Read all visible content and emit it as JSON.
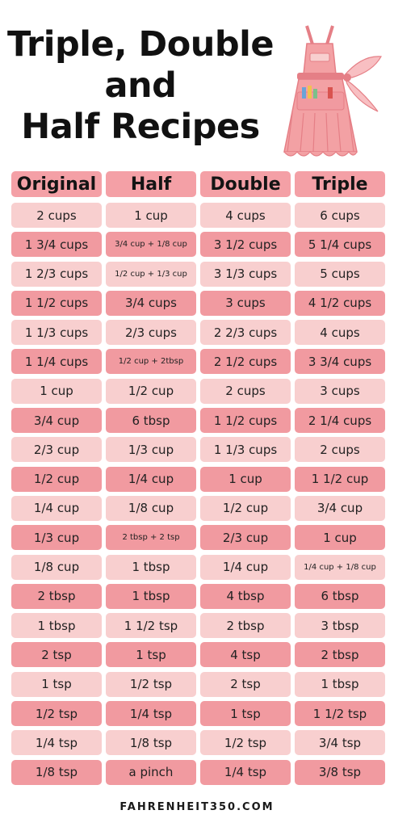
{
  "title": {
    "line1": "Triple, Double",
    "line2": "and",
    "line3": "Half Recipes"
  },
  "colors": {
    "header": "#f4a0a6",
    "dark_row": "#f19aa0",
    "light_row": "#f8cfcf",
    "apron": "#f3a1a4",
    "apron_dark": "#e57f86"
  },
  "columns": [
    "Original",
    "Half",
    "Double",
    "Triple"
  ],
  "rows": [
    [
      "2 cups",
      "1 cup",
      "4 cups",
      "6 cups"
    ],
    [
      "1 3/4 cups",
      "3/4 cup + 1/8 cup",
      "3 1/2 cups",
      "5 1/4 cups"
    ],
    [
      "1 2/3 cups",
      "1/2 cup + 1/3 cup",
      "3 1/3 cups",
      "5 cups"
    ],
    [
      "1 1/2 cups",
      "3/4 cups",
      "3 cups",
      "4 1/2 cups"
    ],
    [
      "1 1/3 cups",
      "2/3 cups",
      "2 2/3 cups",
      "4 cups"
    ],
    [
      "1 1/4 cups",
      "1/2 cup + 2tbsp",
      "2 1/2 cups",
      "3 3/4 cups"
    ],
    [
      "1 cup",
      "1/2 cup",
      "2 cups",
      "3 cups"
    ],
    [
      "3/4 cup",
      "6 tbsp",
      "1 1/2 cups",
      "2 1/4 cups"
    ],
    [
      "2/3 cup",
      "1/3 cup",
      "1 1/3 cups",
      "2 cups"
    ],
    [
      "1/2 cup",
      "1/4 cup",
      "1 cup",
      "1 1/2 cup"
    ],
    [
      "1/4 cup",
      "1/8 cup",
      "1/2 cup",
      "3/4 cup"
    ],
    [
      "1/3 cup",
      "2 tbsp + 2 tsp",
      "2/3 cup",
      "1 cup"
    ],
    [
      "1/8 cup",
      "1 tbsp",
      "1/4 cup",
      "1/4 cup + 1/8 cup"
    ],
    [
      "2 tbsp",
      "1 tbsp",
      "4 tbsp",
      "6 tbsp"
    ],
    [
      "1 tbsp",
      "1 1/2 tsp",
      "2 tbsp",
      "3 tbsp"
    ],
    [
      "2 tsp",
      "1 tsp",
      "4 tsp",
      "2 tbsp"
    ],
    [
      "1 tsp",
      "1/2 tsp",
      "2 tsp",
      "1 tbsp"
    ],
    [
      "1/2 tsp",
      "1/4 tsp",
      "1 tsp",
      "1 1/2 tsp"
    ],
    [
      "1/4 tsp",
      "1/8 tsp",
      "1/2 tsp",
      "3/4 tsp"
    ],
    [
      "1/8 tsp",
      "a pinch",
      "1/4 tsp",
      "3/8 tsp"
    ]
  ],
  "footer": "FAHRENHEIT350.COM"
}
